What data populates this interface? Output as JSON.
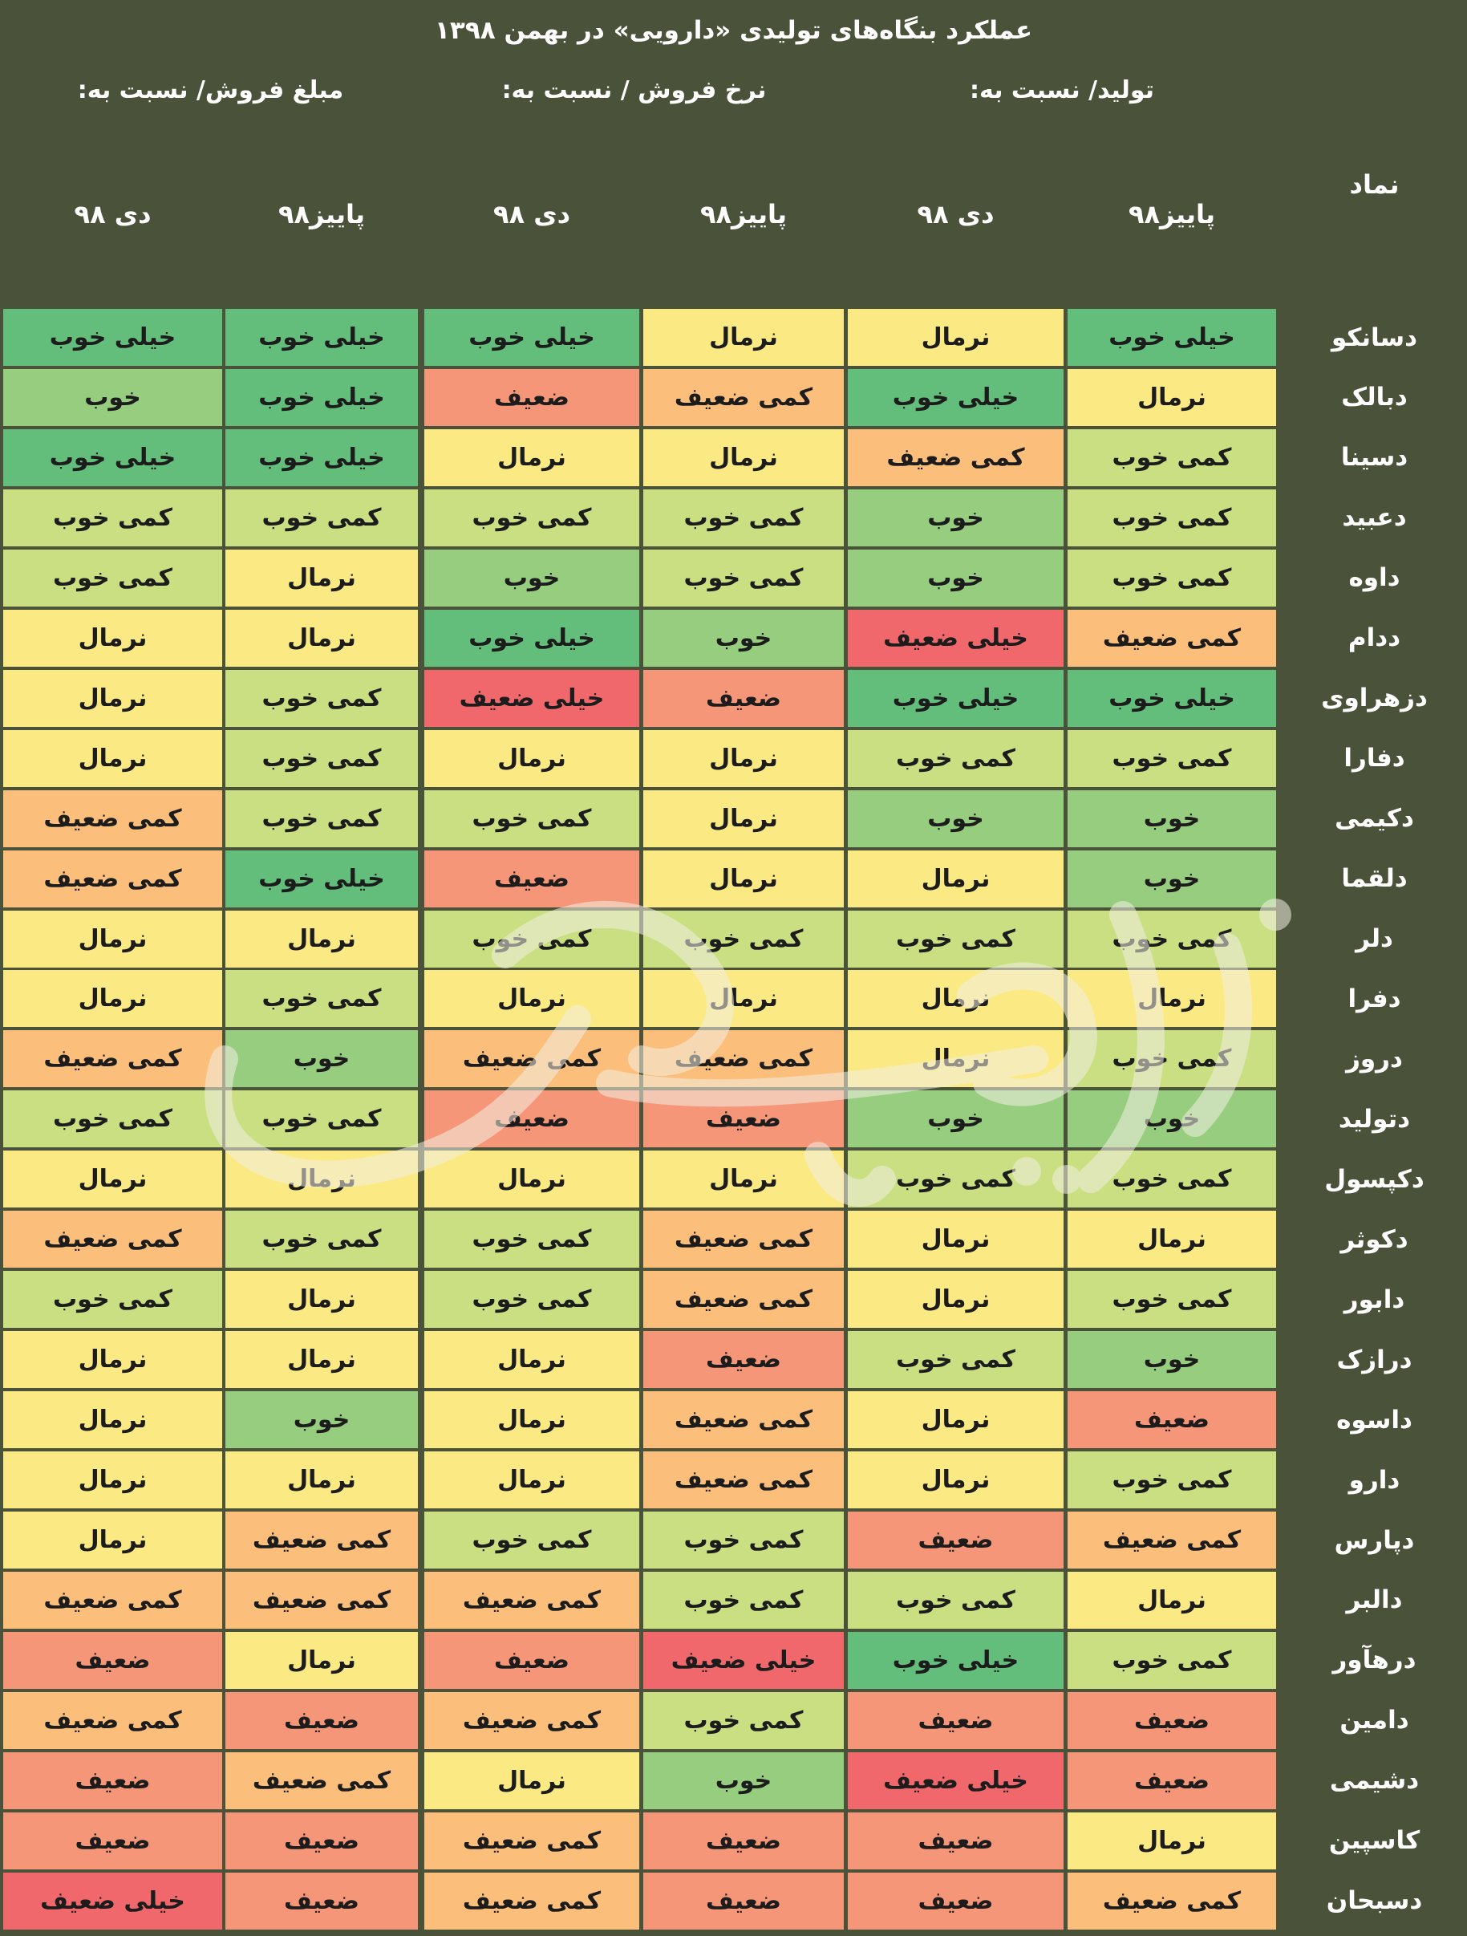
{
  "chart_data": {
    "type": "table",
    "title": "عملکرد بنگاه‌های تولیدی «دارویی» در بهمن ۱۳۹۸",
    "symbol_header": "نماد",
    "groups": [
      {
        "label": "تولید/ نسبت به:",
        "sub": [
          "پاییز۹۸",
          "دی ۹۸"
        ]
      },
      {
        "label": "نرخ فروش / نسبت به:",
        "sub": [
          "پاییز۹۸",
          "دی ۹۸"
        ]
      },
      {
        "label": "مبلغ فروش/ نسبت به:",
        "sub": [
          "پاییز۹۸",
          "دی ۹۸"
        ]
      }
    ],
    "rating_colors": {
      "خیلی خوب": "#63be7b",
      "خوب": "#97cd7e",
      "کمی خوب": "#c9df82",
      "نرمال": "#fbea84",
      "کمی ضعیف": "#fbbe7b",
      "ضعیف": "#f69679",
      "خیلی ضعیف": "#f0686c"
    },
    "rows": [
      {
        "symbol": "دسانکو",
        "values": [
          "خیلی خوب",
          "نرمال",
          "نرمال",
          "خیلی خوب",
          "خیلی خوب",
          "خیلی خوب"
        ]
      },
      {
        "symbol": "دبالک",
        "values": [
          "نرمال",
          "خیلی خوب",
          "کمی ضعیف",
          "ضعیف",
          "خیلی خوب",
          "خوب"
        ]
      },
      {
        "symbol": "دسینا",
        "values": [
          "کمی خوب",
          "کمی ضعیف",
          "نرمال",
          "نرمال",
          "خیلی خوب",
          "خیلی خوب"
        ]
      },
      {
        "symbol": "دعبید",
        "values": [
          "کمی خوب",
          "خوب",
          "کمی خوب",
          "کمی خوب",
          "کمی خوب",
          "کمی خوب"
        ]
      },
      {
        "symbol": "داوه",
        "values": [
          "کمی خوب",
          "خوب",
          "کمی خوب",
          "خوب",
          "نرمال",
          "کمی خوب"
        ]
      },
      {
        "symbol": "ددام",
        "values": [
          "کمی ضعیف",
          "خیلی ضعیف",
          "خوب",
          "خیلی خوب",
          "نرمال",
          "نرمال"
        ]
      },
      {
        "symbol": "دزهراوی",
        "values": [
          "خیلی خوب",
          "خیلی خوب",
          "ضعیف",
          "خیلی ضعیف",
          "کمی خوب",
          "نرمال"
        ]
      },
      {
        "symbol": "دفارا",
        "values": [
          "کمی خوب",
          "کمی خوب",
          "نرمال",
          "نرمال",
          "کمی خوب",
          "نرمال"
        ]
      },
      {
        "symbol": "دکیمی",
        "values": [
          "خوب",
          "خوب",
          "نرمال",
          "کمی خوب",
          "کمی خوب",
          "کمی ضعیف"
        ]
      },
      {
        "symbol": "دلقما",
        "values": [
          "خوب",
          "نرمال",
          "نرمال",
          "ضعیف",
          "خیلی خوب",
          "کمی ضعیف"
        ]
      },
      {
        "symbol": "دلر",
        "values": [
          "کمی خوب",
          "کمی خوب",
          "کمی خوب",
          "کمی خوب",
          "نرمال",
          "نرمال"
        ]
      },
      {
        "symbol": "دفرا",
        "values": [
          "نرمال",
          "نرمال",
          "نرمال",
          "نرمال",
          "کمی خوب",
          "نرمال"
        ]
      },
      {
        "symbol": "دروز",
        "values": [
          "کمی خوب",
          "نرمال",
          "کمی ضعیف",
          "کمی ضعیف",
          "خوب",
          "کمی ضعیف"
        ]
      },
      {
        "symbol": "دتولید",
        "values": [
          "خوب",
          "خوب",
          "ضعیف",
          "ضعیف",
          "کمی خوب",
          "کمی خوب"
        ]
      },
      {
        "symbol": "دکپسول",
        "values": [
          "کمی خوب",
          "کمی خوب",
          "نرمال",
          "نرمال",
          "نرمال",
          "نرمال"
        ]
      },
      {
        "symbol": "دکوثر",
        "values": [
          "نرمال",
          "نرمال",
          "کمی ضعیف",
          "کمی خوب",
          "کمی خوب",
          "کمی ضعیف"
        ]
      },
      {
        "symbol": "دابور",
        "values": [
          "کمی خوب",
          "نرمال",
          "کمی ضعیف",
          "کمی خوب",
          "نرمال",
          "کمی خوب"
        ]
      },
      {
        "symbol": "درازک",
        "values": [
          "خوب",
          "کمی خوب",
          "ضعیف",
          "نرمال",
          "نرمال",
          "نرمال"
        ]
      },
      {
        "symbol": "داسوه",
        "values": [
          "ضعیف",
          "نرمال",
          "کمی ضعیف",
          "نرمال",
          "خوب",
          "نرمال"
        ]
      },
      {
        "symbol": "دارو",
        "values": [
          "کمی خوب",
          "نرمال",
          "کمی ضعیف",
          "نرمال",
          "نرمال",
          "نرمال"
        ]
      },
      {
        "symbol": "دپارس",
        "values": [
          "کمی ضعیف",
          "ضعیف",
          "کمی خوب",
          "کمی خوب",
          "کمی ضعیف",
          "نرمال"
        ]
      },
      {
        "symbol": "دالبر",
        "values": [
          "نرمال",
          "کمی خوب",
          "کمی خوب",
          "کمی ضعیف",
          "کمی ضعیف",
          "کمی ضعیف"
        ]
      },
      {
        "symbol": "درهآور",
        "values": [
          "کمی خوب",
          "خیلی خوب",
          "خیلی ضعیف",
          "ضعیف",
          "نرمال",
          "ضعیف"
        ]
      },
      {
        "symbol": "دامین",
        "values": [
          "ضعیف",
          "ضعیف",
          "کمی خوب",
          "کمی ضعیف",
          "ضعیف",
          "کمی ضعیف"
        ]
      },
      {
        "symbol": "دشیمی",
        "values": [
          "ضعیف",
          "خیلی ضعیف",
          "خوب",
          "نرمال",
          "کمی ضعیف",
          "ضعیف"
        ]
      },
      {
        "symbol": "کاسپین",
        "values": [
          "نرمال",
          "ضعیف",
          "ضعیف",
          "کمی ضعیف",
          "ضعیف",
          "ضعیف"
        ]
      },
      {
        "symbol": "دسبحان",
        "values": [
          "کمی ضعیف",
          "ضعیف",
          "ضعیف",
          "کمی ضعیف",
          "ضعیف",
          "خیلی ضعیف"
        ]
      }
    ]
  }
}
